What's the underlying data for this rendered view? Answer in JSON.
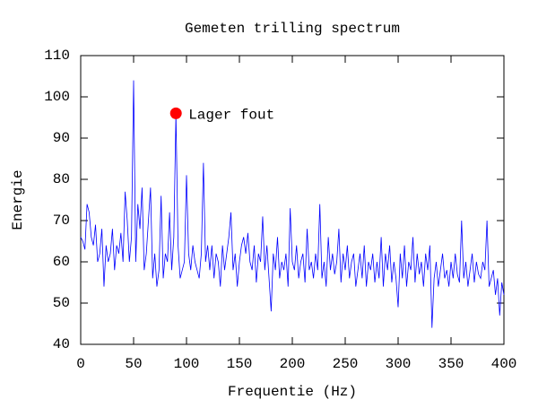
{
  "chart_data": {
    "type": "line",
    "title": "Gemeten trilling spectrum",
    "xlabel": "Frequentie (Hz)",
    "ylabel": "Energie",
    "x": [
      0,
      2,
      4,
      6,
      8,
      10,
      12,
      14,
      16,
      18,
      20,
      22,
      24,
      26,
      28,
      30,
      32,
      34,
      36,
      38,
      40,
      42,
      44,
      46,
      48,
      50,
      52,
      54,
      56,
      58,
      60,
      62,
      64,
      66,
      68,
      70,
      72,
      74,
      76,
      78,
      80,
      82,
      84,
      86,
      88,
      90,
      92,
      94,
      96,
      98,
      100,
      102,
      104,
      106,
      108,
      110,
      112,
      114,
      116,
      118,
      120,
      122,
      124,
      126,
      128,
      130,
      132,
      134,
      136,
      138,
      140,
      142,
      144,
      146,
      148,
      150,
      152,
      154,
      156,
      158,
      160,
      162,
      164,
      166,
      168,
      170,
      172,
      174,
      176,
      178,
      180,
      182,
      184,
      186,
      188,
      190,
      192,
      194,
      196,
      198,
      200,
      202,
      204,
      206,
      208,
      210,
      212,
      214,
      216,
      218,
      220,
      222,
      224,
      226,
      228,
      230,
      232,
      234,
      236,
      238,
      240,
      242,
      244,
      246,
      248,
      250,
      252,
      254,
      256,
      258,
      260,
      262,
      264,
      266,
      268,
      270,
      272,
      274,
      276,
      278,
      280,
      282,
      284,
      286,
      288,
      290,
      292,
      294,
      296,
      298,
      300,
      302,
      304,
      306,
      308,
      310,
      312,
      314,
      316,
      318,
      320,
      322,
      324,
      326,
      328,
      330,
      332,
      334,
      336,
      338,
      340,
      342,
      344,
      346,
      348,
      350,
      352,
      354,
      356,
      358,
      360,
      362,
      364,
      366,
      368,
      370,
      372,
      374,
      376,
      378,
      380,
      382,
      384,
      386,
      388,
      390,
      392,
      394,
      396,
      398,
      400
    ],
    "series": [
      {
        "color": "#0000ff",
        "values": [
          66,
          65,
          63,
          74,
          72,
          66,
          64,
          69,
          60,
          62,
          68,
          54,
          64,
          60,
          62,
          68,
          58,
          64,
          62,
          67,
          60,
          77,
          70,
          60,
          66,
          104,
          60,
          74,
          68,
          78,
          58,
          62,
          70,
          78,
          56,
          62,
          54,
          58,
          76,
          56,
          62,
          60,
          72,
          58,
          66,
          96,
          64,
          56,
          58,
          60,
          81,
          62,
          58,
          64,
          60,
          58,
          56,
          62,
          84,
          60,
          64,
          58,
          64,
          56,
          62,
          60,
          54,
          64,
          58,
          62,
          66,
          72,
          58,
          62,
          54,
          60,
          64,
          66,
          62,
          67,
          60,
          58,
          64,
          55,
          62,
          60,
          71,
          58,
          64,
          56,
          48,
          62,
          58,
          66,
          56,
          60,
          58,
          62,
          54,
          73,
          60,
          58,
          64,
          56,
          60,
          62,
          55,
          68,
          58,
          60,
          56,
          62,
          58,
          74,
          56,
          60,
          54,
          66,
          58,
          62,
          57,
          60,
          68,
          55,
          62,
          58,
          64,
          56,
          60,
          62,
          54,
          58,
          62,
          56,
          64,
          54,
          60,
          58,
          62,
          55,
          60,
          56,
          66,
          54,
          62,
          58,
          64,
          55,
          60,
          56,
          49,
          62,
          56,
          64,
          54,
          60,
          58,
          66,
          55,
          62,
          57,
          60,
          54,
          62,
          58,
          64,
          44,
          56,
          60,
          54,
          58,
          62,
          56,
          58,
          54,
          60,
          56,
          62,
          57,
          55,
          70,
          56,
          60,
          54,
          58,
          62,
          55,
          60,
          57,
          56,
          60,
          58,
          70,
          54,
          56,
          58,
          52,
          56,
          47,
          55,
          52
        ]
      }
    ],
    "xlim": [
      0,
      400
    ],
    "ylim": [
      40,
      110
    ],
    "xticks": [
      0,
      50,
      100,
      150,
      200,
      250,
      300,
      350,
      400
    ],
    "yticks": [
      40,
      50,
      60,
      70,
      80,
      90,
      100,
      110
    ],
    "annotations": [
      {
        "text": "Lager fout",
        "x": 90,
        "y": 96,
        "color": "#ff0000"
      }
    ]
  }
}
